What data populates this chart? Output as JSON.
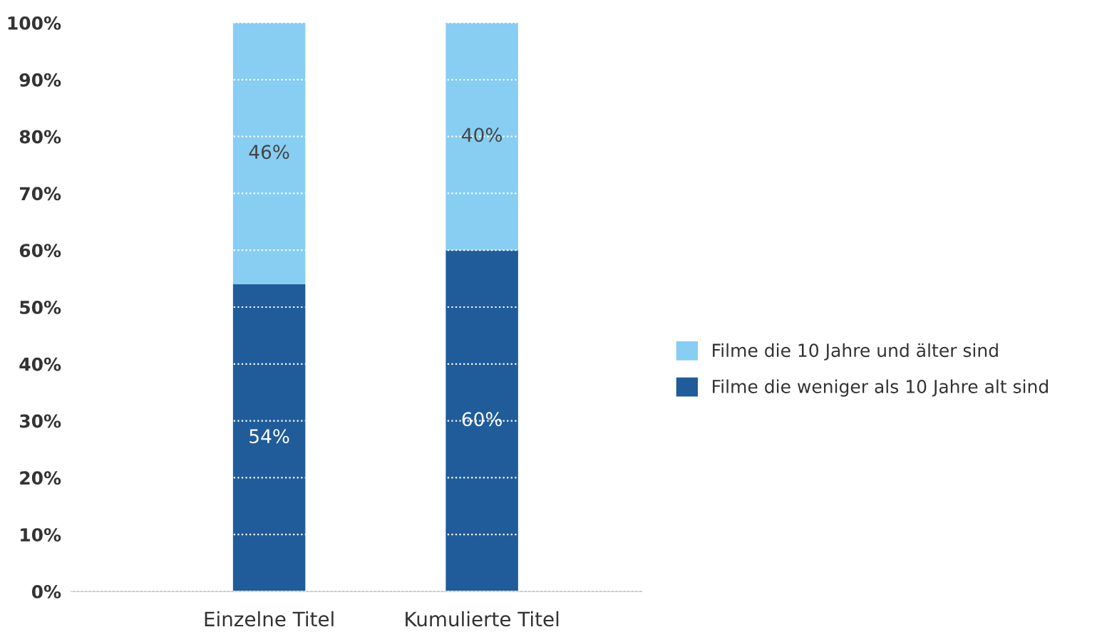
{
  "chart_data": {
    "type": "bar",
    "stacked": true,
    "categories": [
      "Einzelne Titel",
      "Kumulierte Titel"
    ],
    "series": [
      {
        "name": "Filme die weniger als 10 Jahre alt sind",
        "color": "#1f5c99",
        "values": [
          54,
          60
        ]
      },
      {
        "name": "Filme die 10 Jahre und älter sind",
        "color": "#87cef2",
        "values": [
          46,
          40
        ]
      }
    ],
    "ylim": [
      0,
      100
    ],
    "yticks": [
      {
        "value": 0,
        "label": "0%"
      },
      {
        "value": 10,
        "label": "10%"
      },
      {
        "value": 20,
        "label": "20%"
      },
      {
        "value": 30,
        "label": "30%"
      },
      {
        "value": 40,
        "label": "40%"
      },
      {
        "value": 50,
        "label": "50%"
      },
      {
        "value": 60,
        "label": "60%"
      },
      {
        "value": 70,
        "label": "70%"
      },
      {
        "value": 80,
        "label": "80%"
      },
      {
        "value": 90,
        "label": "90%"
      },
      {
        "value": 100,
        "label": "100%"
      }
    ],
    "value_labels": [
      [
        "54%",
        "60%"
      ],
      [
        "46%",
        "40%"
      ]
    ],
    "grid": "y",
    "legend": "right"
  }
}
